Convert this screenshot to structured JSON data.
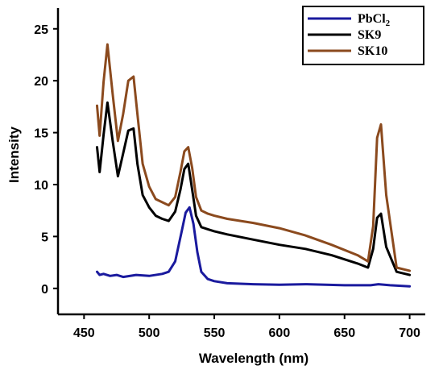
{
  "chart_data": {
    "type": "line",
    "xlabel": "Wavelength (nm)",
    "ylabel": "Intensity",
    "xlim": [
      430,
      712
    ],
    "ylim": [
      -2.5,
      27
    ],
    "xticks": [
      450,
      500,
      550,
      600,
      650,
      700
    ],
    "yticks": [
      0,
      5,
      10,
      15,
      20,
      25
    ],
    "grid": false,
    "legend_position": "top-right",
    "legend": [
      {
        "label": "PbCl",
        "sub": "2"
      },
      {
        "label": "SK9",
        "sub": ""
      },
      {
        "label": "SK10",
        "sub": ""
      }
    ],
    "series": [
      {
        "name": "PbCl2",
        "color": "#1a1a9e",
        "x": [
          460,
          462,
          465,
          470,
          475,
          480,
          490,
          500,
          510,
          515,
          520,
          525,
          528,
          531,
          534,
          537,
          540,
          545,
          550,
          560,
          580,
          600,
          620,
          650,
          670,
          676,
          685,
          700
        ],
        "y": [
          1.6,
          1.3,
          1.4,
          1.2,
          1.3,
          1.1,
          1.3,
          1.2,
          1.4,
          1.6,
          2.6,
          5.5,
          7.3,
          7.8,
          6.2,
          3.5,
          1.6,
          0.9,
          0.7,
          0.5,
          0.4,
          0.35,
          0.4,
          0.3,
          0.3,
          0.4,
          0.3,
          0.2
        ]
      },
      {
        "name": "SK9",
        "color": "#000000",
        "x": [
          460,
          462,
          465,
          468,
          472,
          476,
          480,
          484,
          488,
          491,
          495,
          500,
          505,
          510,
          515,
          520,
          524,
          527,
          530,
          533,
          536,
          540,
          545,
          550,
          560,
          580,
          600,
          620,
          640,
          660,
          668,
          672,
          675,
          678,
          682,
          690,
          700
        ],
        "y": [
          13.6,
          11.2,
          14.8,
          17.9,
          14.2,
          10.8,
          13.0,
          15.2,
          15.4,
          12.0,
          9.0,
          7.8,
          7.0,
          6.7,
          6.5,
          7.4,
          9.5,
          11.5,
          12.0,
          9.5,
          7.0,
          5.9,
          5.7,
          5.5,
          5.2,
          4.7,
          4.2,
          3.8,
          3.2,
          2.4,
          2.0,
          3.8,
          6.8,
          7.2,
          4.0,
          1.6,
          1.3
        ]
      },
      {
        "name": "SK10",
        "color": "#8b4a1e",
        "x": [
          460,
          462,
          465,
          468,
          472,
          476,
          480,
          484,
          488,
          491,
          495,
          500,
          505,
          510,
          515,
          520,
          524,
          527,
          530,
          533,
          536,
          540,
          545,
          550,
          560,
          580,
          600,
          620,
          640,
          660,
          668,
          672,
          675,
          678,
          682,
          690,
          700
        ],
        "y": [
          17.6,
          14.7,
          19.9,
          23.5,
          18.7,
          14.2,
          16.8,
          20.0,
          20.4,
          16.8,
          12.0,
          9.8,
          8.6,
          8.3,
          8.0,
          8.8,
          11.2,
          13.2,
          13.6,
          11.6,
          8.8,
          7.5,
          7.2,
          7.0,
          6.7,
          6.3,
          5.8,
          5.1,
          4.2,
          3.2,
          2.6,
          6.0,
          14.5,
          15.8,
          9.0,
          2.0,
          1.7
        ]
      }
    ]
  }
}
